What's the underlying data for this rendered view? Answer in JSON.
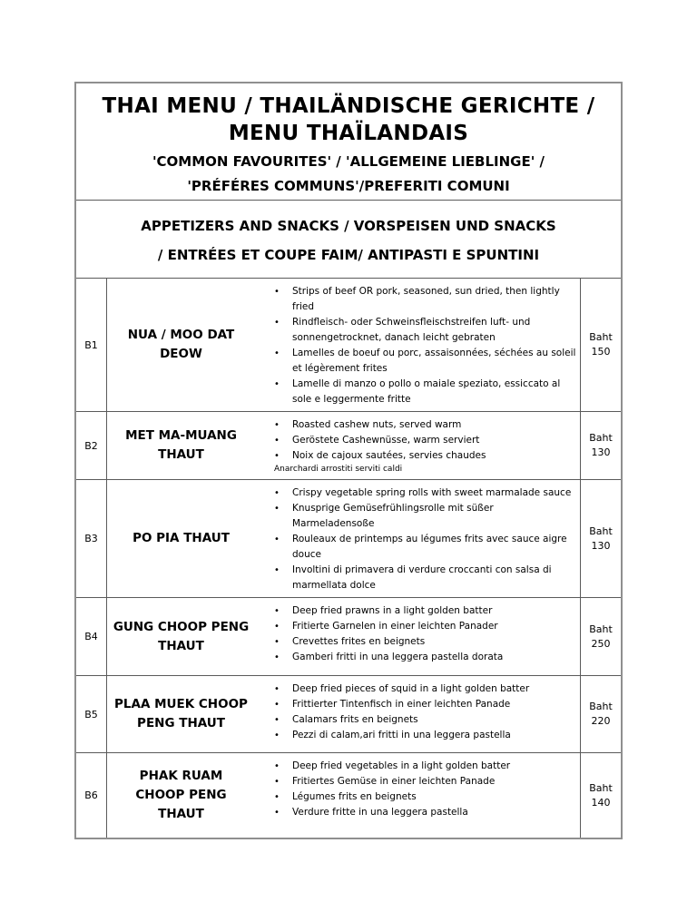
{
  "header": {
    "title": "THAI MENU / THAILÄNDISCHE GERICHTE /\nMENU THAÏLANDAIS",
    "subtitle": "'COMMON FAVOURITES' / 'ALLGEMEINE LIEBLINGE' /\n'PRÉFÉRES COMMUNS'/PREFERITI COMUNI"
  },
  "section": {
    "heading": "APPETIZERS AND SNACKS / VORSPEISEN UND SNACKS\n/ ENTRÉES ET COUPE FAIM/ ANTIPASTI E SPUNTINI"
  },
  "menu": {
    "bullet_glyph": "•",
    "currency_label": "Baht",
    "items": [
      {
        "code": "B1",
        "name": "NUA / MOO DAT\nDEOW",
        "bullets": [
          "Strips of beef OR pork, seasoned, sun dried, then lightly fried",
          "Rindfleisch- oder Schweinsfleischstreifen luft- und sonnengetrocknet, danach leicht gebraten",
          "Lamelles de boeuf ou porc, assaisonnées, séchées au soleil et légèrement frites",
          "Lamelle di manzo o pollo o maiale speziato, essiccato al sole e leggermente fritte"
        ],
        "price": "150"
      },
      {
        "code": "B2",
        "name": "MET MA-MUANG\nTHAUT",
        "bullets": [
          "Roasted cashew nuts, served warm",
          "Geröstete Cashewnüsse, warm serviert",
          "Noix de cajoux sautées, servies chaudes"
        ],
        "note": "Anarchardi arrostiti serviti caldi",
        "price": "130"
      },
      {
        "code": "B3",
        "name": "PO PIA THAUT",
        "bullets": [
          "Crispy vegetable spring rolls with sweet marmalade sauce",
          "Knusprige Gemüsefrühlingsrolle mit süßer Marmeladensoße",
          "Rouleaux de printemps au légumes frits avec sauce aigre douce",
          "Involtini di primavera di verdure croccanti con salsa di marmellata dolce"
        ],
        "price": "130"
      },
      {
        "code": "B4",
        "name": "GUNG CHOOP PENG\nTHAUT",
        "bullets": [
          "Deep fried prawns in a light golden batter",
          "Fritierte Garnelen in einer leichten Panader",
          "Crevettes frites en beignets",
          "Gamberi fritti in una leggera pastella dorata"
        ],
        "price": "250"
      },
      {
        "code": "B5",
        "name": "PLAA MUEK CHOOP\nPENG THAUT",
        "bullets": [
          "Deep fried pieces of squid in a light golden batter",
          "Frittierter Tintenfisch in einer leichten Panade",
          "Calamars frits en beignets",
          "Pezzi di calam,ari fritti in una leggera pastella"
        ],
        "price": "220"
      },
      {
        "code": "B6",
        "name": "PHAK RUAM\nCHOOP PENG\nTHAUT",
        "bullets": [
          "Deep fried vegetables in a light golden batter",
          "Fritiertes Gemüse in einer leichten Panade",
          "Légumes frits en beignets",
          "Verdure fritte in una leggera pastella"
        ],
        "price": "140"
      }
    ]
  }
}
